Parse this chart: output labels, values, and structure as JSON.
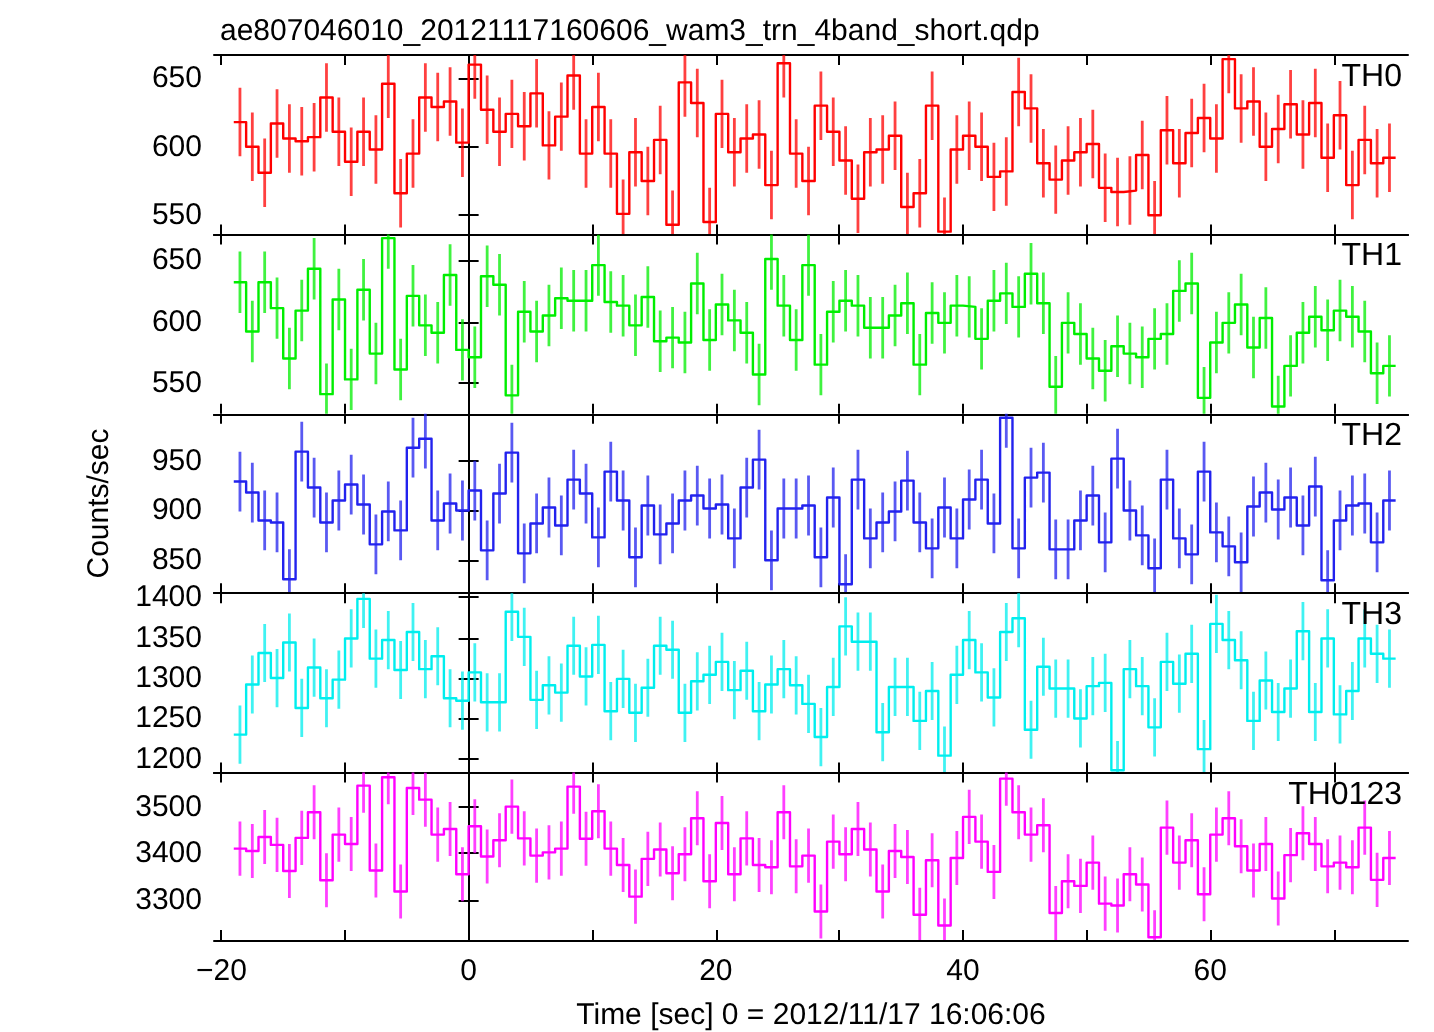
{
  "chart_data": [
    {
      "type": "step",
      "title": "ae807046010_20121117160606_wam3_trn_4band_short.qdp",
      "annotations": [
        "TH0"
      ],
      "tick_labels": "y",
      "xlim": [
        -20.6,
        76
      ],
      "xticks": [
        {
          "value": -20,
          "label": null
        },
        {
          "value": -10,
          "label": null
        },
        {
          "value": 0,
          "label": null
        },
        {
          "value": 10,
          "label": null
        },
        {
          "value": 20,
          "label": null
        },
        {
          "value": 30,
          "label": null
        },
        {
          "value": 40,
          "label": null
        },
        {
          "value": 50,
          "label": null
        },
        {
          "value": 60,
          "label": null
        },
        {
          "value": 70,
          "label": null
        }
      ],
      "ylim": [
        536,
        667
      ],
      "yticks": [
        550,
        600,
        650
      ],
      "x": [
        -18.5,
        -17.5,
        -16.5,
        -15.5,
        -14.5,
        -13.5,
        -12.5,
        -11.5,
        -10.5,
        -9.5,
        -8.5,
        -7.5,
        -6.5,
        -5.5,
        -4.5,
        -3.5,
        -2.5,
        -1.5,
        -0.5,
        0.5,
        1.5,
        2.5,
        3.5,
        4.5,
        5.5,
        6.5,
        7.5,
        8.5,
        9.5,
        10.5,
        11.5,
        12.5,
        13.5,
        14.5,
        15.5,
        16.5,
        17.5,
        18.5,
        19.5,
        20.5,
        21.5,
        22.5,
        23.5,
        24.5,
        25.5,
        26.5,
        27.5,
        28.5,
        29.5,
        30.5,
        31.5,
        32.5,
        33.5,
        34.5,
        35.5,
        36.5,
        37.5,
        38.5,
        39.5,
        40.5,
        41.5,
        42.5,
        43.5,
        44.5,
        45.5,
        46.5,
        47.5,
        48.5,
        49.5,
        50.5,
        51.5,
        52.5,
        53.5,
        54.5,
        55.5,
        56.5,
        57.5,
        58.5,
        59.5,
        60.5,
        61.5,
        62.5,
        63.5,
        64.5,
        65.5,
        66.5,
        67.5,
        68.5,
        69.5,
        70.5,
        71.5,
        72.5,
        73.5,
        74.5
      ],
      "series": [
        {
          "color": "#ff0000",
          "values": [
            618,
            600,
            581,
            617,
            606,
            604,
            607,
            636,
            611,
            589,
            611,
            598,
            646,
            566,
            595,
            636,
            629,
            633,
            603,
            660,
            627,
            611,
            624,
            615,
            639,
            601,
            622,
            652,
            595,
            629,
            595,
            551,
            596,
            575,
            605,
            543,
            647,
            632,
            545,
            624,
            596,
            606,
            609,
            572,
            661,
            595,
            575,
            630,
            611,
            590,
            562,
            596,
            598,
            608,
            556,
            566,
            630,
            538,
            598,
            608,
            600,
            578,
            582,
            640,
            628,
            588,
            576,
            590,
            596,
            602,
            570,
            567,
            568,
            594,
            550,
            612,
            588,
            610,
            621,
            606,
            664,
            628,
            633,
            600,
            613,
            631,
            609,
            632,
            592,
            623,
            572,
            605,
            588,
            592
          ],
          "errors": [
            25,
            25,
            25,
            25,
            25,
            25,
            25,
            25,
            25,
            25,
            25,
            25,
            25,
            25,
            25,
            25,
            25,
            25,
            25,
            25,
            25,
            25,
            25,
            25,
            25,
            25,
            25,
            25,
            25,
            25,
            25,
            25,
            25,
            25,
            25,
            25,
            25,
            25,
            25,
            25,
            25,
            25,
            25,
            25,
            25,
            25,
            25,
            25,
            25,
            25,
            25,
            25,
            25,
            25,
            25,
            25,
            25,
            25,
            25,
            25,
            25,
            25,
            25,
            25,
            25,
            25,
            25,
            25,
            25,
            25,
            25,
            25,
            25,
            25,
            25,
            25,
            25,
            25,
            25,
            25,
            25,
            25,
            25,
            25,
            25,
            25,
            25,
            25,
            25,
            25,
            25,
            25,
            25,
            25
          ]
        }
      ]
    },
    {
      "type": "step",
      "annotations": [
        "TH1"
      ],
      "tick_labels": "y",
      "xlim": [
        -20.6,
        76
      ],
      "xticks": [
        {
          "value": -20,
          "label": null
        },
        {
          "value": -10,
          "label": null
        },
        {
          "value": 0,
          "label": null
        },
        {
          "value": 10,
          "label": null
        },
        {
          "value": 20,
          "label": null
        },
        {
          "value": 30,
          "label": null
        },
        {
          "value": 40,
          "label": null
        },
        {
          "value": 50,
          "label": null
        },
        {
          "value": 60,
          "label": null
        },
        {
          "value": 70,
          "label": null
        }
      ],
      "ylim": [
        525,
        671
      ],
      "yticks": [
        550,
        600,
        650
      ],
      "x": [
        -18.5,
        -17.5,
        -16.5,
        -15.5,
        -14.5,
        -13.5,
        -12.5,
        -11.5,
        -10.5,
        -9.5,
        -8.5,
        -7.5,
        -6.5,
        -5.5,
        -4.5,
        -3.5,
        -2.5,
        -1.5,
        -0.5,
        0.5,
        1.5,
        2.5,
        3.5,
        4.5,
        5.5,
        6.5,
        7.5,
        8.5,
        9.5,
        10.5,
        11.5,
        12.5,
        13.5,
        14.5,
        15.5,
        16.5,
        17.5,
        18.5,
        19.5,
        20.5,
        21.5,
        22.5,
        23.5,
        24.5,
        25.5,
        26.5,
        27.5,
        28.5,
        29.5,
        30.5,
        31.5,
        32.5,
        33.5,
        34.5,
        35.5,
        36.5,
        37.5,
        38.5,
        39.5,
        40.5,
        41.5,
        42.5,
        43.5,
        44.5,
        45.5,
        46.5,
        47.5,
        48.5,
        49.5,
        50.5,
        51.5,
        52.5,
        53.5,
        54.5,
        55.5,
        56.5,
        57.5,
        58.5,
        59.5,
        60.5,
        61.5,
        62.5,
        63.5,
        64.5,
        65.5,
        66.5,
        67.5,
        68.5,
        69.5,
        70.5,
        71.5,
        72.5,
        73.5,
        74.5
      ],
      "series": [
        {
          "color": "#00ee00",
          "values": [
            632,
            592,
            632,
            611,
            570,
            609,
            643,
            541,
            618,
            553,
            626,
            574,
            668,
            561,
            621,
            597,
            591,
            638,
            577,
            571,
            637,
            630,
            540,
            608,
            592,
            605,
            619,
            617,
            617,
            646,
            616,
            613,
            597,
            620,
            584,
            587,
            583,
            631,
            585,
            614,
            601,
            591,
            557,
            651,
            613,
            585,
            646,
            565,
            608,
            617,
            613,
            595,
            595,
            605,
            615,
            565,
            607,
            599,
            613,
            612,
            586,
            617,
            623,
            612,
            639,
            615,
            547,
            599,
            590,
            570,
            560,
            580,
            574,
            571,
            586,
            590,
            625,
            631,
            538,
            583,
            599,
            614,
            579,
            603,
            531,
            564,
            591,
            604,
            593,
            609,
            604,
            592,
            558,
            564
          ],
          "errors": [
            25,
            25,
            25,
            25,
            25,
            25,
            25,
            25,
            25,
            25,
            25,
            25,
            25,
            25,
            25,
            25,
            25,
            25,
            25,
            25,
            25,
            25,
            25,
            25,
            25,
            25,
            25,
            25,
            25,
            25,
            25,
            25,
            25,
            25,
            25,
            25,
            25,
            25,
            25,
            25,
            25,
            25,
            25,
            25,
            25,
            25,
            25,
            25,
            25,
            25,
            25,
            25,
            25,
            25,
            25,
            25,
            25,
            25,
            25,
            25,
            25,
            25,
            25,
            25,
            25,
            25,
            25,
            25,
            25,
            25,
            25,
            25,
            25,
            25,
            25,
            25,
            25,
            25,
            25,
            25,
            25,
            25,
            25,
            25,
            25,
            25,
            25,
            25,
            25,
            25,
            25,
            25,
            25,
            25
          ]
        }
      ]
    },
    {
      "type": "step",
      "annotations": [
        "TH2"
      ],
      "ylabel": "Counts/sec",
      "tick_labels": "y",
      "xlim": [
        -20.6,
        76
      ],
      "xticks": [
        {
          "value": -20,
          "label": null
        },
        {
          "value": -10,
          "label": null
        },
        {
          "value": 0,
          "label": null
        },
        {
          "value": 10,
          "label": null
        },
        {
          "value": 20,
          "label": null
        },
        {
          "value": 30,
          "label": null
        },
        {
          "value": 40,
          "label": null
        },
        {
          "value": 50,
          "label": null
        },
        {
          "value": 60,
          "label": null
        },
        {
          "value": 70,
          "label": null
        }
      ],
      "ylim": [
        817,
        997
      ],
      "yticks": [
        850,
        900,
        950
      ],
      "x": [
        -18.5,
        -17.5,
        -16.5,
        -15.5,
        -14.5,
        -13.5,
        -12.5,
        -11.5,
        -10.5,
        -9.5,
        -8.5,
        -7.5,
        -6.5,
        -5.5,
        -4.5,
        -3.5,
        -2.5,
        -1.5,
        -0.5,
        0.5,
        1.5,
        2.5,
        3.5,
        4.5,
        5.5,
        6.5,
        7.5,
        8.5,
        9.5,
        10.5,
        11.5,
        12.5,
        13.5,
        14.5,
        15.5,
        16.5,
        17.5,
        18.5,
        19.5,
        20.5,
        21.5,
        22.5,
        23.5,
        24.5,
        25.5,
        26.5,
        27.5,
        28.5,
        29.5,
        30.5,
        31.5,
        32.5,
        33.5,
        34.5,
        35.5,
        36.5,
        37.5,
        38.5,
        39.5,
        40.5,
        41.5,
        42.5,
        43.5,
        44.5,
        45.5,
        46.5,
        47.5,
        48.5,
        49.5,
        50.5,
        51.5,
        52.5,
        53.5,
        54.5,
        55.5,
        56.5,
        57.5,
        58.5,
        59.5,
        60.5,
        61.5,
        62.5,
        63.5,
        64.5,
        65.5,
        66.5,
        67.5,
        68.5,
        69.5,
        70.5,
        71.5,
        72.5,
        73.5,
        74.5
      ],
      "series": [
        {
          "color": "#2222ee",
          "values": [
            929,
            918,
            890,
            888,
            831,
            959,
            923,
            888,
            910,
            926,
            906,
            866,
            899,
            880,
            963,
            972,
            890,
            907,
            900,
            920,
            860,
            917,
            958,
            857,
            887,
            903,
            885,
            931,
            917,
            873,
            939,
            910,
            853,
            905,
            876,
            887,
            910,
            915,
            902,
            906,
            872,
            923,
            951,
            850,
            902,
            902,
            905,
            853,
            913,
            826,
            931,
            872,
            888,
            899,
            930,
            888,
            862,
            903,
            872,
            911,
            931,
            887,
            993,
            862,
            933,
            938,
            861,
            861,
            890,
            915,
            868,
            952,
            900,
            875,
            842,
            931,
            872,
            856,
            939,
            878,
            864,
            848,
            904,
            918,
            901,
            913,
            885,
            924,
            830,
            890,
            905,
            907,
            868,
            910
          ],
          "errors": [
            30,
            30,
            30,
            30,
            30,
            30,
            30,
            30,
            30,
            30,
            30,
            30,
            30,
            30,
            30,
            30,
            30,
            30,
            30,
            30,
            30,
            30,
            30,
            30,
            30,
            30,
            30,
            30,
            30,
            30,
            30,
            30,
            30,
            30,
            30,
            30,
            30,
            30,
            30,
            30,
            30,
            30,
            30,
            30,
            30,
            30,
            30,
            30,
            30,
            30,
            30,
            30,
            30,
            30,
            30,
            30,
            30,
            30,
            30,
            30,
            30,
            30,
            30,
            30,
            30,
            30,
            30,
            30,
            30,
            30,
            30,
            30,
            30,
            30,
            30,
            30,
            30,
            30,
            30,
            30,
            30,
            30,
            30,
            30,
            30,
            30,
            30,
            30,
            30,
            30,
            30,
            30,
            30,
            30
          ]
        }
      ]
    },
    {
      "type": "step",
      "annotations": [
        "TH3"
      ],
      "tick_labels": "y",
      "xlim": [
        -20.6,
        76
      ],
      "xticks": [
        {
          "value": -20,
          "label": null
        },
        {
          "value": -10,
          "label": null
        },
        {
          "value": 0,
          "label": null
        },
        {
          "value": 10,
          "label": null
        },
        {
          "value": 20,
          "label": null
        },
        {
          "value": 30,
          "label": null
        },
        {
          "value": 40,
          "label": null
        },
        {
          "value": 50,
          "label": null
        },
        {
          "value": 60,
          "label": null
        },
        {
          "value": 70,
          "label": null
        }
      ],
      "ylim": [
        1183,
        1405
      ],
      "yticks": [
        1200,
        1250,
        1300,
        1350,
        1400
      ],
      "x": [
        -18.5,
        -17.5,
        -16.5,
        -15.5,
        -14.5,
        -13.5,
        -12.5,
        -11.5,
        -10.5,
        -9.5,
        -8.5,
        -7.5,
        -6.5,
        -5.5,
        -4.5,
        -3.5,
        -2.5,
        -1.5,
        -0.5,
        0.5,
        1.5,
        2.5,
        3.5,
        4.5,
        5.5,
        6.5,
        7.5,
        8.5,
        9.5,
        10.5,
        11.5,
        12.5,
        13.5,
        14.5,
        15.5,
        16.5,
        17.5,
        18.5,
        19.5,
        20.5,
        21.5,
        22.5,
        23.5,
        24.5,
        25.5,
        26.5,
        27.5,
        28.5,
        29.5,
        30.5,
        31.5,
        32.5,
        33.5,
        34.5,
        35.5,
        36.5,
        37.5,
        38.5,
        39.5,
        40.5,
        41.5,
        42.5,
        43.5,
        44.5,
        45.5,
        46.5,
        47.5,
        48.5,
        49.5,
        50.5,
        51.5,
        52.5,
        53.5,
        54.5,
        55.5,
        56.5,
        57.5,
        58.5,
        59.5,
        60.5,
        61.5,
        62.5,
        63.5,
        64.5,
        65.5,
        66.5,
        67.5,
        68.5,
        69.5,
        70.5,
        71.5,
        72.5,
        73.5,
        74.5
      ],
      "series": [
        {
          "color": "#00eeee",
          "values": [
            1230,
            1292,
            1331,
            1300,
            1344,
            1263,
            1313,
            1275,
            1298,
            1349,
            1398,
            1324,
            1347,
            1310,
            1357,
            1311,
            1327,
            1275,
            1272,
            1307,
            1270,
            1270,
            1382,
            1351,
            1273,
            1291,
            1282,
            1340,
            1302,
            1341,
            1259,
            1299,
            1257,
            1288,
            1340,
            1335,
            1257,
            1296,
            1304,
            1320,
            1285,
            1309,
            1259,
            1292,
            1311,
            1291,
            1268,
            1227,
            1289,
            1364,
            1345,
            1345,
            1233,
            1289,
            1289,
            1247,
            1284,
            1204,
            1304,
            1347,
            1307,
            1276,
            1357,
            1374,
            1236,
            1314,
            1287,
            1287,
            1250,
            1290,
            1294,
            1186,
            1311,
            1290,
            1239,
            1320,
            1293,
            1330,
            1212,
            1367,
            1347,
            1322,
            1247,
            1297,
            1258,
            1287,
            1358,
            1258,
            1349,
            1255,
            1284,
            1349,
            1330,
            1324
          ],
          "errors": [
            36,
            36,
            36,
            36,
            36,
            36,
            36,
            36,
            36,
            36,
            36,
            36,
            36,
            36,
            36,
            36,
            36,
            36,
            36,
            36,
            36,
            36,
            36,
            36,
            36,
            36,
            36,
            36,
            36,
            36,
            36,
            36,
            36,
            36,
            36,
            36,
            36,
            36,
            36,
            36,
            36,
            36,
            36,
            36,
            36,
            36,
            36,
            36,
            36,
            36,
            36,
            36,
            36,
            36,
            36,
            36,
            36,
            36,
            36,
            36,
            36,
            36,
            36,
            36,
            36,
            36,
            36,
            36,
            36,
            36,
            36,
            36,
            36,
            36,
            36,
            36,
            36,
            36,
            36,
            36,
            36,
            36,
            36,
            36,
            36,
            36,
            36,
            36,
            36,
            36,
            36,
            36,
            36,
            36
          ]
        }
      ]
    },
    {
      "type": "step",
      "annotations": [
        "TH0123"
      ],
      "xlabel": "Time [sec] 0 = 2012/11/17 16:06:06",
      "xlim": [
        -20.6,
        76
      ],
      "xticks": [
        -20,
        {
          "value": -10,
          "label": null
        },
        0,
        {
          "value": 10,
          "label": null
        },
        20,
        {
          "value": 30,
          "label": null
        },
        40,
        {
          "value": 50,
          "label": null
        },
        60,
        {
          "value": 70,
          "label": null
        }
      ],
      "ylim": [
        3214,
        3573
      ],
      "yticks": [
        3300,
        3400,
        3500
      ],
      "x": [
        -18.5,
        -17.5,
        -16.5,
        -15.5,
        -14.5,
        -13.5,
        -12.5,
        -11.5,
        -10.5,
        -9.5,
        -8.5,
        -7.5,
        -6.5,
        -5.5,
        -4.5,
        -3.5,
        -2.5,
        -1.5,
        -0.5,
        0.5,
        1.5,
        2.5,
        3.5,
        4.5,
        5.5,
        6.5,
        7.5,
        8.5,
        9.5,
        10.5,
        11.5,
        12.5,
        13.5,
        14.5,
        15.5,
        16.5,
        17.5,
        18.5,
        19.5,
        20.5,
        21.5,
        22.5,
        23.5,
        24.5,
        25.5,
        26.5,
        27.5,
        28.5,
        29.5,
        30.5,
        31.5,
        32.5,
        33.5,
        34.5,
        35.5,
        36.5,
        37.5,
        38.5,
        39.5,
        40.5,
        41.5,
        42.5,
        43.5,
        44.5,
        45.5,
        46.5,
        47.5,
        48.5,
        49.5,
        50.5,
        51.5,
        52.5,
        53.5,
        54.5,
        55.5,
        56.5,
        57.5,
        58.5,
        59.5,
        60.5,
        61.5,
        62.5,
        63.5,
        64.5,
        65.5,
        66.5,
        67.5,
        68.5,
        69.5,
        70.5,
        71.5,
        72.5,
        73.5,
        74.5
      ],
      "series": [
        {
          "color": "#ff00ff",
          "values": [
            3410,
            3405,
            3435,
            3418,
            3362,
            3433,
            3488,
            3342,
            3440,
            3420,
            3545,
            3363,
            3563,
            3318,
            3540,
            3515,
            3440,
            3452,
            3355,
            3458,
            3393,
            3428,
            3500,
            3432,
            3395,
            3402,
            3410,
            3543,
            3431,
            3490,
            3410,
            3375,
            3307,
            3388,
            3408,
            3357,
            3398,
            3475,
            3340,
            3465,
            3355,
            3432,
            3375,
            3370,
            3488,
            3372,
            3395,
            3275,
            3425,
            3398,
            3452,
            3408,
            3318,
            3405,
            3392,
            3268,
            3385,
            3245,
            3390,
            3478,
            3425,
            3360,
            3560,
            3488,
            3440,
            3460,
            3272,
            3340,
            3330,
            3380,
            3292,
            3288,
            3355,
            3333,
            3220,
            3455,
            3380,
            3428,
            3312,
            3440,
            3475,
            3415,
            3363,
            3420,
            3303,
            3396,
            3443,
            3420,
            3372,
            3380,
            3370,
            3455,
            3343,
            3390
          ],
          "errors": [
            58,
            58,
            58,
            58,
            58,
            58,
            58,
            58,
            58,
            58,
            58,
            58,
            58,
            58,
            58,
            58,
            58,
            58,
            58,
            58,
            58,
            58,
            58,
            58,
            58,
            58,
            58,
            58,
            58,
            58,
            58,
            58,
            58,
            58,
            58,
            58,
            58,
            58,
            58,
            58,
            58,
            58,
            58,
            58,
            58,
            58,
            58,
            58,
            58,
            58,
            58,
            58,
            58,
            58,
            58,
            58,
            58,
            58,
            58,
            58,
            58,
            58,
            58,
            58,
            58,
            58,
            58,
            58,
            58,
            58,
            58,
            58,
            58,
            58,
            58,
            58,
            58,
            58,
            58,
            58,
            58,
            58,
            58,
            58,
            58,
            58,
            58,
            58,
            58,
            58,
            58,
            58,
            58,
            58
          ]
        }
      ]
    }
  ]
}
